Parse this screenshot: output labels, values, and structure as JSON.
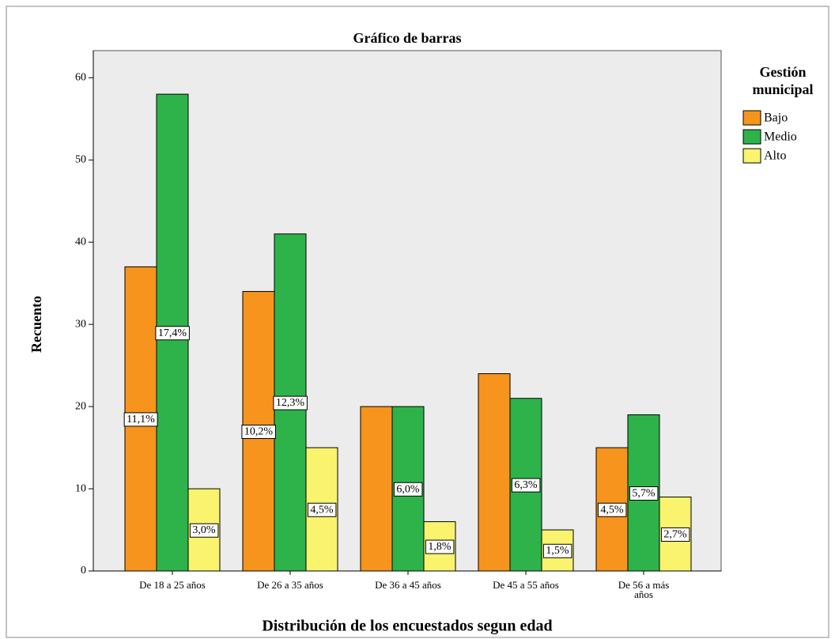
{
  "chart_data": {
    "type": "bar",
    "title": "Gráfico de barras",
    "x_label": "Distribución de los encuestados segun edad",
    "y_label": "Recuento",
    "legend_title": "Gestión municipal",
    "legend_position": "right",
    "categories": [
      "De 18 a 25 años",
      "De 26 a 35 años",
      "De 36 a 45 años",
      "De 45 a 55 años",
      "De 56 a más años"
    ],
    "series": [
      {
        "name": "Bajo",
        "color": "#f7941d",
        "values": [
          37,
          34,
          20,
          24,
          15
        ],
        "value_labels": [
          "11,1%",
          "10,2%",
          null,
          null,
          "4,5%"
        ]
      },
      {
        "name": "Medio",
        "color": "#2db34a",
        "values": [
          58,
          41,
          20,
          21,
          19
        ],
        "value_labels": [
          "17,4%",
          "12,3%",
          "6,0%",
          "6,3%",
          "5,7%"
        ]
      },
      {
        "name": "Alto",
        "color": "#f9f36e",
        "values": [
          10,
          15,
          6,
          5,
          9
        ],
        "value_labels": [
          "3,0%",
          "4,5%",
          "1,8%",
          "1,5%",
          "2,7%"
        ]
      }
    ],
    "ylim": [
      0,
      63.3
    ],
    "yticks": [
      0,
      10,
      20,
      30,
      40,
      50,
      60
    ]
  }
}
